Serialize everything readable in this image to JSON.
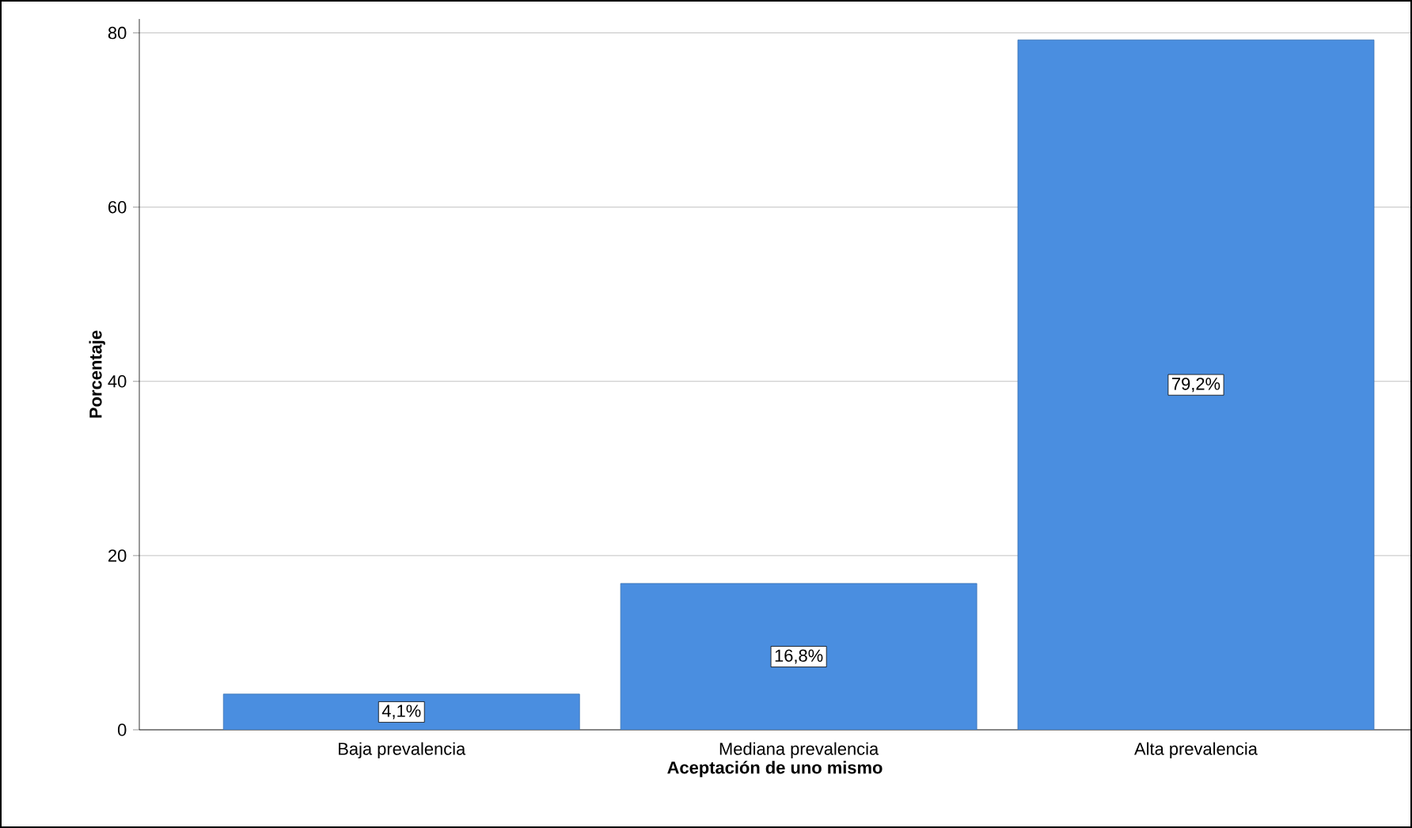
{
  "chart_data": {
    "type": "bar",
    "xlabel": "Aceptación de uno mismo",
    "ylabel": "Porcentaje",
    "categories": [
      "Baja prevalencia",
      "Mediana prevalencia",
      "Alta prevalencia"
    ],
    "values": [
      4.1,
      16.8,
      79.2
    ],
    "value_labels": [
      "4,1%",
      "16,8%",
      "79,2%"
    ],
    "color": "#4a8ee0",
    "ylim": [
      0,
      81.6
    ],
    "yticks": [
      0,
      20,
      40,
      60,
      80
    ],
    "grid": "y"
  }
}
